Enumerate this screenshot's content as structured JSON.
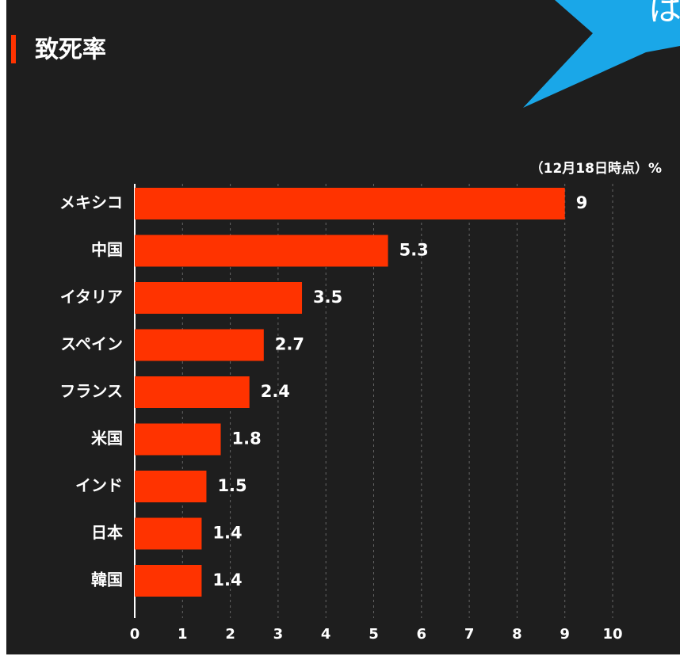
{
  "chart_data": {
    "type": "bar",
    "orientation": "horizontal",
    "title": "致死率",
    "note": "（12月18日時点）%",
    "categories": [
      "メキシコ",
      "中国",
      "イタリア",
      "スペイン",
      "フランス",
      "米国",
      "インド",
      "日本",
      "韓国"
    ],
    "values": [
      9,
      5.3,
      3.5,
      2.7,
      2.4,
      1.8,
      1.5,
      1.4,
      1.4
    ],
    "color": "#ff3300",
    "xlim": [
      0,
      10
    ],
    "xticks": [
      0,
      1,
      2,
      3,
      4,
      5,
      6,
      7,
      8,
      9,
      10
    ],
    "grid": true
  },
  "bubble": {
    "text": "は"
  }
}
